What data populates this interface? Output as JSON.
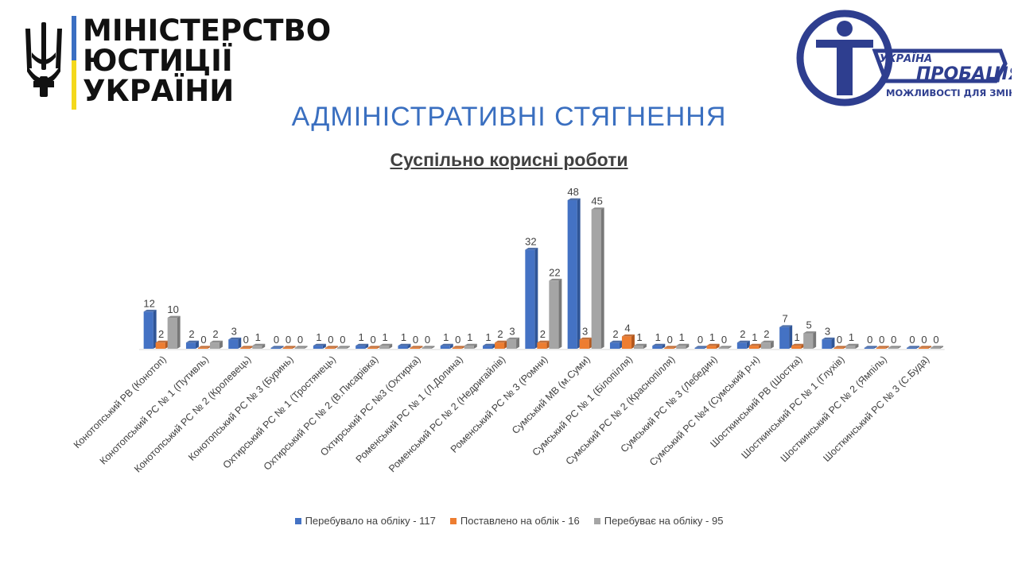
{
  "header": {
    "ministry_line1": "МІНІСТЕРСТВО",
    "ministry_line2": "ЮСТИЦІЇ УКРАЇНИ",
    "probation_country": "УКРАЇНА",
    "probation_word": "ПРОБАЦІЯ",
    "probation_slogan": "МОЖЛИВОСТІ ДЛЯ ЗМІН"
  },
  "slide_title": "АДМІНІСТРАТИВНІ СТЯГНЕННЯ",
  "colors": {
    "series1": "#4472c4",
    "series2": "#ed7d31",
    "series3": "#a5a5a5",
    "title": "#3a6fc0",
    "logo": "#2e3e8f"
  },
  "chart_data": {
    "type": "bar",
    "title": "Суспільно корисні роботи",
    "categories": [
      "Конотопський РВ (Конотоп)",
      "Конотопський РС № 1 (Путивль)",
      "Конотопський РС № 2 (Кролевець)",
      "Конотопський РС № 3 (Буринь)",
      "Охтирський РС № 1 (Тростянець)",
      "Охтирський РС № 2 (В.Писарівка)",
      "Охтирський РС №3 (Охтирка)",
      "Роменський РС № 1 (Л.Долина)",
      "Роменський РС № 2 (Недригайлів)",
      "Роменський РС № 3 (Ромни)",
      "Сумський МВ (м.Суми)",
      "Сумський РС № 1 (Білопілля)",
      "Сумський РС № 2 (Краснопілля)",
      "Сумський РС № 3 (Лебедин)",
      "Сумський РС №4 (Сумський р-н)",
      "Шосткинський РВ (Шостка)",
      "Шосткинський РС № 1 (Глухів)",
      "Шосткинський РС № 2 (Ямпіль)",
      "Шосткинський РС № 3 (С.Буда)"
    ],
    "series": [
      {
        "name": "Перебувало на обліку - 117",
        "values": [
          12,
          2,
          3,
          0,
          1,
          1,
          1,
          1,
          1,
          32,
          48,
          2,
          1,
          0,
          2,
          7,
          3,
          0,
          0
        ]
      },
      {
        "name": "Поставлено на облік - 16",
        "values": [
          2,
          0,
          0,
          0,
          0,
          0,
          0,
          0,
          2,
          2,
          3,
          4,
          0,
          1,
          1,
          1,
          0,
          0,
          0
        ]
      },
      {
        "name": "Перебуває на обліку - 95",
        "values": [
          10,
          2,
          1,
          0,
          0,
          1,
          0,
          1,
          3,
          22,
          45,
          1,
          1,
          0,
          2,
          5,
          1,
          0,
          0
        ]
      }
    ],
    "ylim": [
      0,
      50
    ],
    "grid": false,
    "legend_position": "bottom"
  }
}
